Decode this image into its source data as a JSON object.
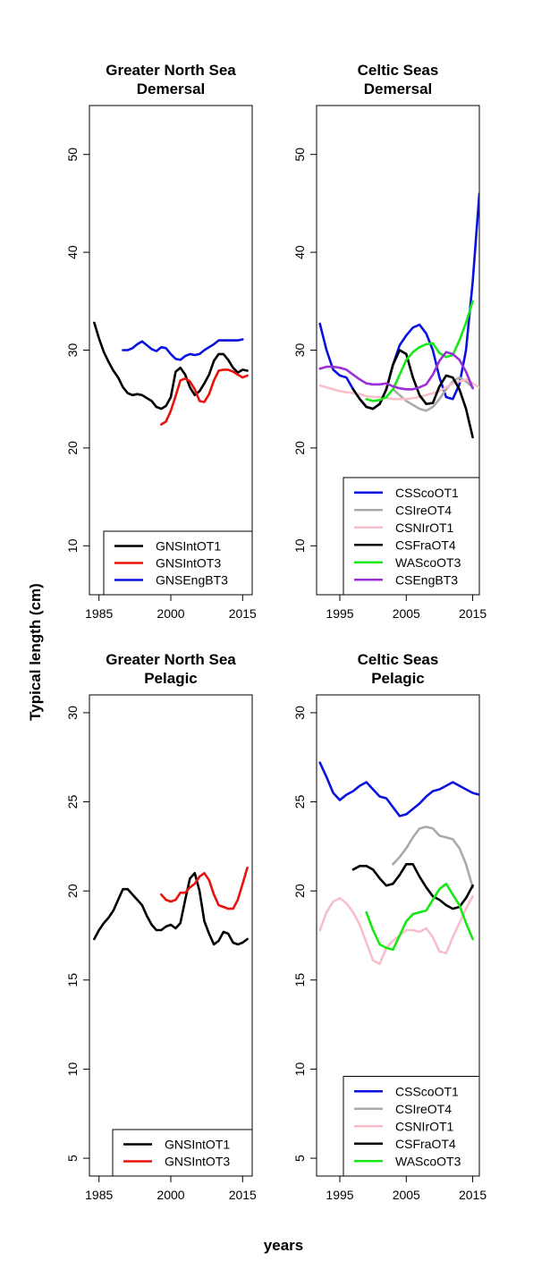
{
  "figure": {
    "ylabel": "Typical length (cm)",
    "xlabel": "years"
  },
  "chart_data": [
    {
      "type": "line",
      "title": [
        "Greater North Sea",
        "Demersal"
      ],
      "xlim": [
        1983,
        2017
      ],
      "ylim": [
        5,
        55
      ],
      "xticks": [
        1985,
        2000,
        2015
      ],
      "yticks": [
        10,
        20,
        30,
        40,
        50
      ],
      "legend_position": "bottom-right",
      "series": [
        {
          "name": "GNSIntOT1",
          "color": "#000000",
          "x": [
            1984,
            1985,
            1986,
            1987,
            1988,
            1989,
            1990,
            1991,
            1992,
            1993,
            1994,
            1995,
            1996,
            1997,
            1998,
            1999,
            2000,
            2001,
            2002,
            2003,
            2004,
            2005,
            2006,
            2007,
            2008,
            2009,
            2010,
            2011,
            2012,
            2013,
            2014,
            2015,
            2016
          ],
          "y": [
            32.8,
            31.2,
            29.8,
            28.8,
            27.9,
            27.2,
            26.2,
            25.6,
            25.4,
            25.5,
            25.4,
            25.1,
            24.8,
            24.2,
            24.0,
            24.3,
            25.2,
            27.8,
            28.2,
            27.5,
            26.2,
            25.4,
            25.8,
            26.6,
            27.5,
            28.9,
            29.6,
            29.6,
            29.0,
            28.2,
            27.7,
            28.0,
            27.9
          ]
        },
        {
          "name": "GNSIntOT3",
          "color": "#e8120c",
          "x": [
            1998,
            1999,
            2000,
            2001,
            2002,
            2003,
            2004,
            2005,
            2006,
            2007,
            2008,
            2009,
            2010,
            2011,
            2012,
            2013,
            2014,
            2015,
            2016
          ],
          "y": [
            22.4,
            22.7,
            23.8,
            25.3,
            26.9,
            27.1,
            26.8,
            26.0,
            24.8,
            24.7,
            25.5,
            26.9,
            27.9,
            28.0,
            28.0,
            27.8,
            27.5,
            27.2,
            27.4
          ]
        },
        {
          "name": "GNSEngBT3",
          "color": "#0a12e0",
          "x": [
            1990,
            1991,
            1992,
            1993,
            1994,
            1995,
            1996,
            1997,
            1998,
            1999,
            2000,
            2001,
            2002,
            2003,
            2004,
            2005,
            2006,
            2007,
            2008,
            2009,
            2010,
            2011,
            2012,
            2013,
            2014,
            2015
          ],
          "y": [
            30.0,
            30.0,
            30.2,
            30.6,
            30.9,
            30.5,
            30.1,
            29.9,
            30.3,
            30.2,
            29.6,
            29.1,
            29.0,
            29.4,
            29.6,
            29.5,
            29.6,
            30.0,
            30.3,
            30.6,
            31.0,
            31.0,
            31.0,
            31.0,
            31.0,
            31.1
          ]
        }
      ]
    },
    {
      "type": "line",
      "title": [
        "Celtic Seas",
        "Demersal"
      ],
      "xlim": [
        1991.5,
        2016
      ],
      "ylim": [
        5,
        55
      ],
      "xticks": [
        1995,
        2005,
        2015
      ],
      "yticks": [
        10,
        20,
        30,
        40,
        50
      ],
      "legend_position": "bottom-right",
      "series": [
        {
          "name": "CSScoOT1",
          "color": "#0a12e0",
          "x": [
            1992,
            1993,
            1994,
            1995,
            1996,
            1997,
            1998,
            1999,
            2000,
            2001,
            2002,
            2003,
            2004,
            2005,
            2006,
            2007,
            2008,
            2009,
            2010,
            2011,
            2012,
            2013,
            2014,
            2015,
            2016
          ],
          "y": [
            32.7,
            30.0,
            28.0,
            27.4,
            27.2,
            26.0,
            25.0,
            24.2,
            24.0,
            24.5,
            26.0,
            28.5,
            30.5,
            31.5,
            32.3,
            32.6,
            31.7,
            30.0,
            27.2,
            25.2,
            25.0,
            26.5,
            30.0,
            37.0,
            46.0
          ]
        },
        {
          "name": "CSIreOT4",
          "color": "#aaaaaa",
          "x": [
            2003,
            2004,
            2005,
            2006,
            2007,
            2008,
            2009,
            2010,
            2011,
            2012,
            2013,
            2014,
            2015
          ],
          "y": [
            26.0,
            25.4,
            24.8,
            24.4,
            24.0,
            23.8,
            24.2,
            25.0,
            26.0,
            26.8,
            27.2,
            26.8,
            26.2
          ]
        },
        {
          "name": "CSNIrOT1",
          "color": "#f7bfc9",
          "x": [
            1992,
            1993,
            1994,
            1995,
            1996,
            1997,
            1998,
            1999,
            2000,
            2001,
            2002,
            2003,
            2004,
            2005,
            2006,
            2007,
            2008,
            2009,
            2010,
            2011,
            2012,
            2013,
            2014,
            2015,
            2016
          ],
          "y": [
            26.4,
            26.2,
            26.0,
            25.8,
            25.7,
            25.6,
            25.5,
            25.3,
            25.2,
            25.2,
            25.1,
            25.0,
            25.0,
            25.0,
            25.1,
            25.2,
            25.4,
            25.6,
            25.8,
            26.2,
            26.6,
            26.8,
            27.0,
            26.6,
            26.2
          ]
        },
        {
          "name": "CSFraOT4",
          "color": "#000000",
          "x": [
            1997,
            1998,
            1999,
            2000,
            2001,
            2002,
            2003,
            2004,
            2005,
            2006,
            2007,
            2008,
            2009,
            2010,
            2011,
            2012,
            2013,
            2014,
            2015
          ],
          "y": [
            26.0,
            25.0,
            24.2,
            24.0,
            24.5,
            26.0,
            28.5,
            30.0,
            29.6,
            27.2,
            25.4,
            24.5,
            24.6,
            26.3,
            27.4,
            27.2,
            26.0,
            24.0,
            21.1
          ]
        },
        {
          "name": "WAScoOT3",
          "color": "#16e816",
          "x": [
            1999,
            2000,
            2001,
            2002,
            2003,
            2004,
            2005,
            2006,
            2007,
            2008,
            2009,
            2010,
            2011,
            2012,
            2013,
            2014,
            2015
          ],
          "y": [
            25.0,
            24.8,
            24.9,
            25.2,
            26.0,
            27.5,
            29.0,
            29.8,
            30.3,
            30.6,
            30.7,
            29.7,
            29.3,
            29.5,
            31.0,
            32.8,
            35.0
          ]
        },
        {
          "name": "CSEngBT3",
          "color": "#9b30d9",
          "x": [
            1992,
            1993,
            1994,
            1995,
            1996,
            1997,
            1998,
            1999,
            2000,
            2001,
            2002,
            2003,
            2004,
            2005,
            2006,
            2007,
            2008,
            2009,
            2010,
            2011,
            2012,
            2013,
            2014,
            2015
          ],
          "y": [
            28.1,
            28.3,
            28.3,
            28.2,
            28.0,
            27.5,
            27.0,
            26.6,
            26.5,
            26.5,
            26.6,
            26.3,
            26.1,
            26.0,
            26.0,
            26.2,
            26.5,
            27.5,
            28.9,
            29.8,
            29.6,
            29.0,
            27.8,
            26.1
          ]
        }
      ]
    },
    {
      "type": "line",
      "title": [
        "Greater North Sea",
        "Pelagic"
      ],
      "xlim": [
        1983,
        2017
      ],
      "ylim": [
        4,
        31
      ],
      "xticks": [
        1985,
        2000,
        2015
      ],
      "yticks": [
        5,
        10,
        15,
        20,
        25,
        30
      ],
      "legend_position": "bottom-right",
      "series": [
        {
          "name": "GNSIntOT1",
          "color": "#000000",
          "x": [
            1984,
            1985,
            1986,
            1987,
            1988,
            1989,
            1990,
            1991,
            1992,
            1993,
            1994,
            1995,
            1996,
            1997,
            1998,
            1999,
            2000,
            2001,
            2002,
            2003,
            2004,
            2005,
            2006,
            2007,
            2008,
            2009,
            2010,
            2011,
            2012,
            2013,
            2014,
            2015,
            2016
          ],
          "y": [
            17.3,
            17.8,
            18.2,
            18.5,
            18.9,
            19.5,
            20.1,
            20.1,
            19.8,
            19.5,
            19.2,
            18.6,
            18.1,
            17.8,
            17.8,
            18.0,
            18.1,
            17.9,
            18.2,
            19.5,
            20.7,
            21.0,
            20.0,
            18.3,
            17.6,
            17.0,
            17.2,
            17.7,
            17.6,
            17.1,
            17.0,
            17.1,
            17.3
          ]
        },
        {
          "name": "GNSIntOT3",
          "color": "#e8120c",
          "x": [
            1998,
            1999,
            2000,
            2001,
            2002,
            2003,
            2004,
            2005,
            2006,
            2007,
            2008,
            2009,
            2010,
            2011,
            2012,
            2013,
            2014,
            2015,
            2016
          ],
          "y": [
            19.8,
            19.5,
            19.4,
            19.5,
            19.9,
            19.9,
            20.2,
            20.4,
            20.8,
            21.0,
            20.6,
            19.8,
            19.2,
            19.1,
            19.0,
            19.0,
            19.5,
            20.4,
            21.3
          ]
        }
      ]
    },
    {
      "type": "line",
      "title": [
        "Celtic Seas",
        "Pelagic"
      ],
      "xlim": [
        1991.5,
        2016
      ],
      "ylim": [
        4,
        31
      ],
      "xticks": [
        1995,
        2005,
        2015
      ],
      "yticks": [
        5,
        10,
        15,
        20,
        25,
        30
      ],
      "legend_position": "bottom-right",
      "series": [
        {
          "name": "CSScoOT1",
          "color": "#0a12e0",
          "x": [
            1992,
            1993,
            1994,
            1995,
            1996,
            1997,
            1998,
            1999,
            2000,
            2001,
            2002,
            2003,
            2004,
            2005,
            2006,
            2007,
            2008,
            2009,
            2010,
            2011,
            2012,
            2013,
            2014,
            2015,
            2016
          ],
          "y": [
            27.2,
            26.4,
            25.5,
            25.1,
            25.4,
            25.6,
            25.9,
            26.1,
            25.7,
            25.3,
            25.2,
            24.7,
            24.2,
            24.3,
            24.6,
            24.9,
            25.3,
            25.6,
            25.7,
            25.9,
            26.1,
            25.9,
            25.7,
            25.5,
            25.4
          ]
        },
        {
          "name": "CSIreOT4",
          "color": "#aaaaaa",
          "x": [
            2003,
            2004,
            2005,
            2006,
            2007,
            2008,
            2009,
            2010,
            2011,
            2012,
            2013,
            2014,
            2015
          ],
          "y": [
            21.5,
            21.9,
            22.4,
            23.0,
            23.5,
            23.6,
            23.5,
            23.1,
            23.0,
            22.9,
            22.4,
            21.5,
            20.2
          ]
        },
        {
          "name": "CSNIrOT1",
          "color": "#f7bfc9",
          "x": [
            1992,
            1993,
            1994,
            1995,
            1996,
            1997,
            1998,
            1999,
            2000,
            2001,
            2002,
            2003,
            2004,
            2005,
            2006,
            2007,
            2008,
            2009,
            2010,
            2011,
            2012,
            2013,
            2014,
            2015
          ],
          "y": [
            17.8,
            18.8,
            19.4,
            19.6,
            19.3,
            18.8,
            18.1,
            17.1,
            16.1,
            15.9,
            16.8,
            17.2,
            17.5,
            17.8,
            17.8,
            17.7,
            17.9,
            17.4,
            16.6,
            16.5,
            17.4,
            18.2,
            19.0,
            19.7
          ]
        },
        {
          "name": "CSFraOT4",
          "color": "#000000",
          "x": [
            1997,
            1998,
            1999,
            2000,
            2001,
            2002,
            2003,
            2004,
            2005,
            2006,
            2007,
            2008,
            2009,
            2010,
            2011,
            2012,
            2013,
            2014,
            2015
          ],
          "y": [
            21.2,
            21.4,
            21.4,
            21.2,
            20.7,
            20.3,
            20.4,
            20.9,
            21.5,
            21.5,
            20.8,
            20.2,
            19.7,
            19.5,
            19.2,
            19.0,
            19.1,
            19.6,
            20.3
          ]
        },
        {
          "name": "WAScoOT3",
          "color": "#16e816",
          "x": [
            1999,
            2000,
            2001,
            2002,
            2003,
            2004,
            2005,
            2006,
            2007,
            2008,
            2009,
            2010,
            2011,
            2012,
            2013,
            2014,
            2015
          ],
          "y": [
            18.8,
            17.8,
            17.0,
            16.8,
            16.7,
            17.5,
            18.3,
            18.7,
            18.8,
            18.9,
            19.5,
            20.1,
            20.4,
            19.8,
            19.2,
            18.2,
            17.3
          ]
        }
      ]
    }
  ]
}
